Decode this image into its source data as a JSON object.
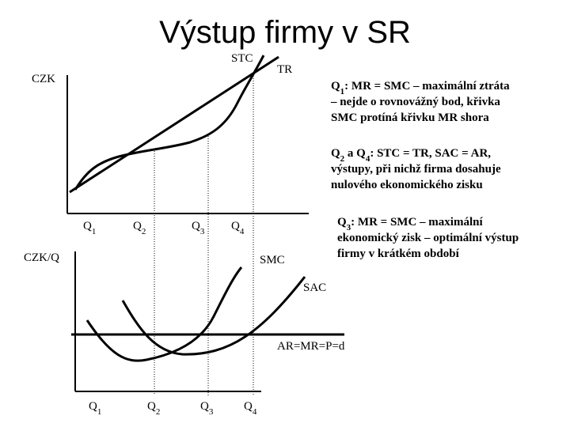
{
  "title": "Výstup firmy v SR",
  "top_chart": {
    "y_label": "CZK",
    "curves": [
      "STC",
      "TR"
    ],
    "q_labels": [
      [
        "Q",
        "1"
      ],
      [
        "Q",
        "2"
      ],
      [
        "Q",
        "3"
      ],
      [
        "Q",
        "4"
      ]
    ]
  },
  "bottom_chart": {
    "y_label": "CZK/Q",
    "curves": [
      "SMC",
      "SAC"
    ],
    "line_label": "AR=MR=P=d",
    "q_labels": [
      [
        "Q",
        "1"
      ],
      [
        "Q",
        "2"
      ],
      [
        "Q",
        "3"
      ],
      [
        "Q",
        "4"
      ]
    ]
  },
  "notes": [
    {
      "first": [
        "Q",
        "1",
        ":  MR = SMC – maximální ztráta"
      ],
      "lines": [
        "– nejde o rovnovážný bod, křivka",
        "SMC protíná křivku MR shora"
      ]
    },
    {
      "first": [
        "Q",
        "2",
        " a Q",
        "4",
        ":  STC = TR, SAC = AR,"
      ],
      "lines": [
        "výstupy, při nichž firma dosahuje",
        "nulového ekonomického zisku"
      ]
    },
    {
      "first": [
        "Q",
        "3",
        ":  MR = SMC – maximální"
      ],
      "lines": [
        "ekonomický zisk – optimální výstup",
        "firmy v krátkém období"
      ]
    }
  ]
}
